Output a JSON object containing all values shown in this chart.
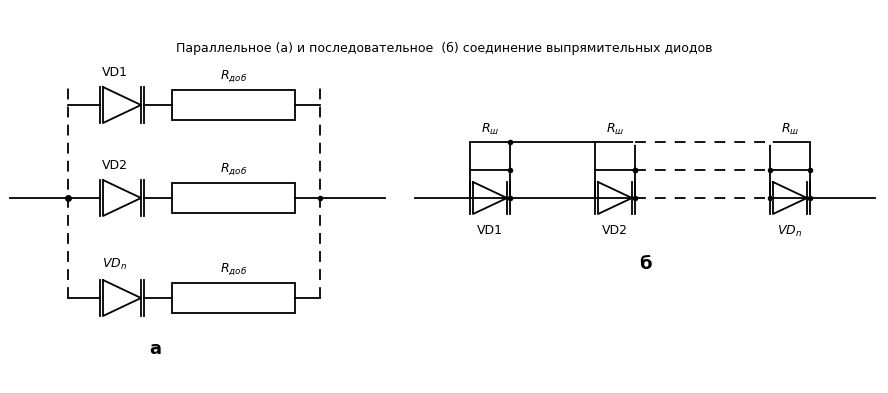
{
  "title": "Параллельное (а) и последовательное  (б) соединение выпрямительных диодов",
  "label_a": "а",
  "label_b": "б",
  "label_vd1": "VD1",
  "label_vd2": "VD2",
  "label_vdn": "VDⁿ",
  "label_rdob": "R_доб",
  "label_rsh": "R_ш",
  "bg_color": "#ffffff",
  "line_color": "#000000"
}
